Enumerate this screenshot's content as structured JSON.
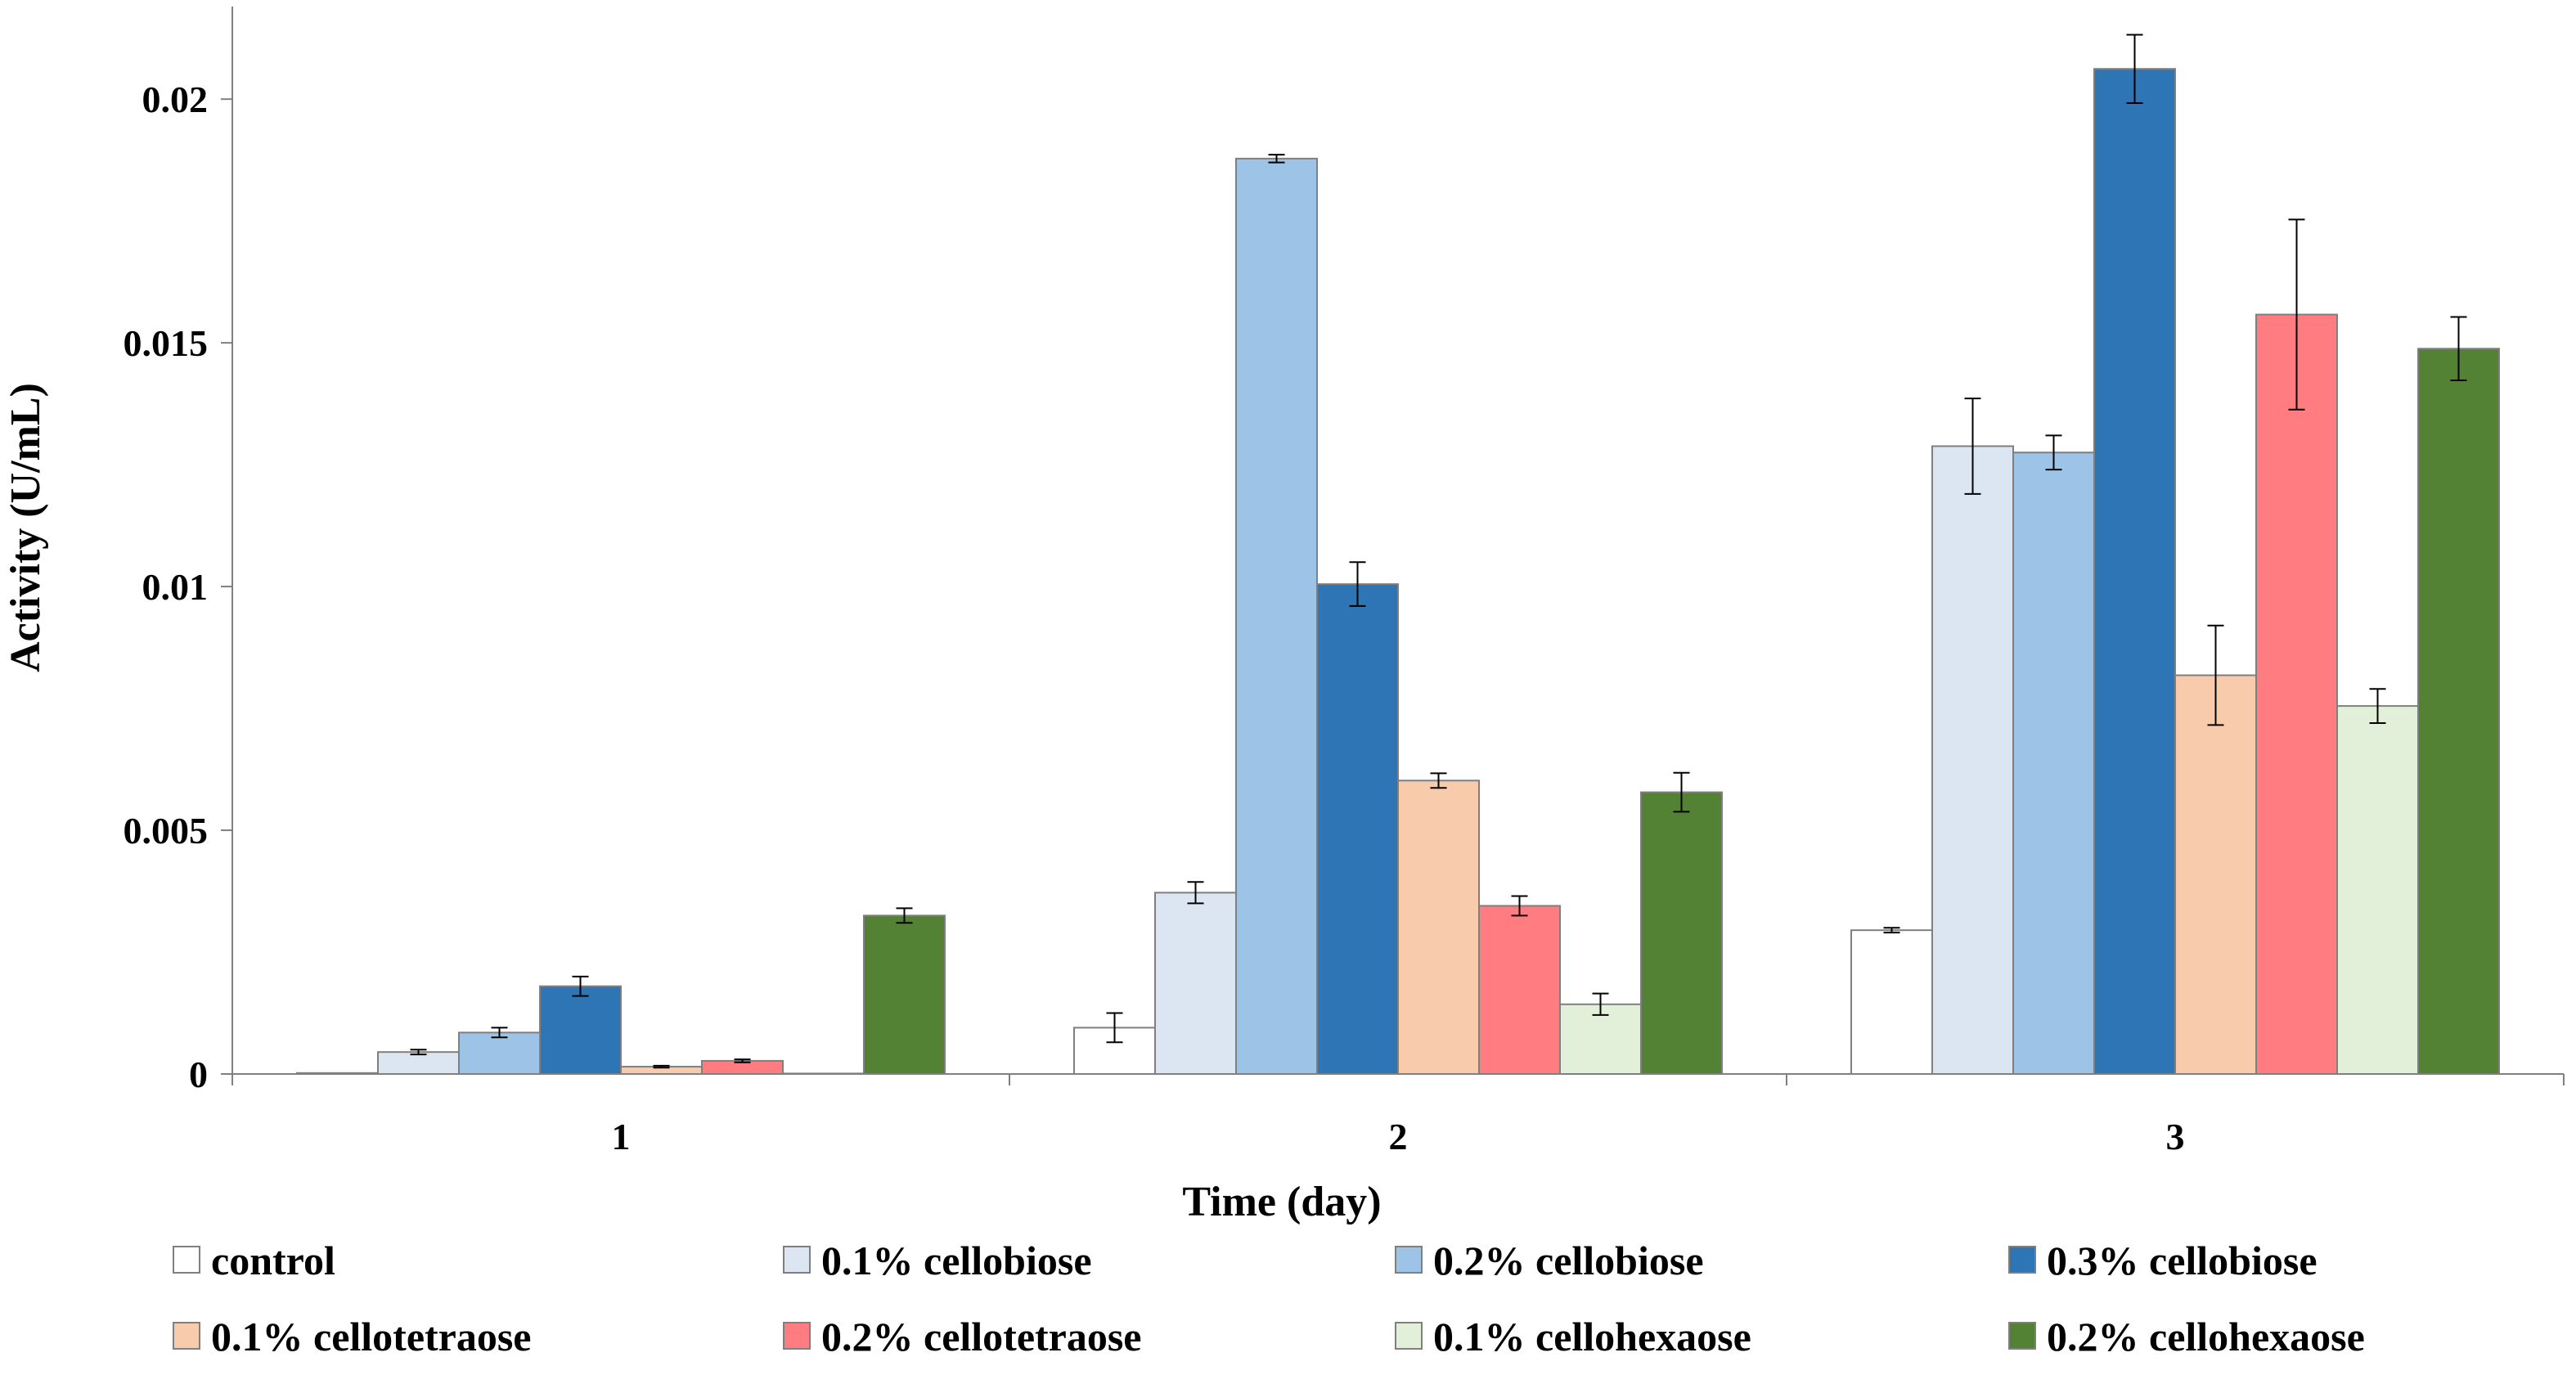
{
  "chart_data": {
    "type": "bar",
    "title": "",
    "xlabel": "Time (day)",
    "ylabel": "Activity  (U/mL)",
    "categories": [
      "1",
      "2",
      "3"
    ],
    "ylim": [
      0,
      0.022
    ],
    "yticks": [
      0,
      0.005,
      0.01,
      0.015,
      0.02
    ],
    "ytick_labels": [
      "0",
      "0.005",
      "0.01",
      "0.015",
      "0.02"
    ],
    "grid": false,
    "legend_position": "bottom",
    "series": [
      {
        "name": "control",
        "color": "#ffffff",
        "values": [
          2e-05,
          0.00095,
          0.00295
        ],
        "errors": [
          0.0,
          0.0003,
          5e-05
        ]
      },
      {
        "name": "0.1% cellobiose",
        "color": "#dce6f2",
        "values": [
          0.00045,
          0.00372,
          0.01288
        ],
        "errors": [
          5e-05,
          0.00022,
          0.00098
        ]
      },
      {
        "name": "0.2% cellobiose",
        "color": "#9dc3e6",
        "values": [
          0.00085,
          0.01878,
          0.01275
        ],
        "errors": [
          0.0001,
          8e-05,
          0.00035
        ]
      },
      {
        "name": "0.3% cellobiose",
        "color": "#2e75b6",
        "values": [
          0.0018,
          0.01005,
          0.02062
        ],
        "errors": [
          0.0002,
          0.00045,
          0.0007
        ]
      },
      {
        "name": "0.1% cellotetraose",
        "color": "#f8cbad",
        "values": [
          0.00015,
          0.00602,
          0.00818
        ],
        "errors": [
          2e-05,
          0.00015,
          0.00102
        ]
      },
      {
        "name": "0.2% cellotetraose",
        "color": "#ff7c80",
        "values": [
          0.00027,
          0.00345,
          0.01558
        ],
        "errors": [
          3e-05,
          0.0002,
          0.00195
        ]
      },
      {
        "name": "0.1% cellohexaose",
        "color": "#e2f0d9",
        "values": [
          1e-05,
          0.00143,
          0.00755
        ],
        "errors": [
          0.0,
          0.00022,
          0.00035
        ]
      },
      {
        "name": "0.2% cellohexaose",
        "color": "#548235",
        "values": [
          0.00325,
          0.00578,
          0.01488
        ],
        "errors": [
          0.00015,
          0.0004,
          0.00065
        ]
      }
    ]
  }
}
